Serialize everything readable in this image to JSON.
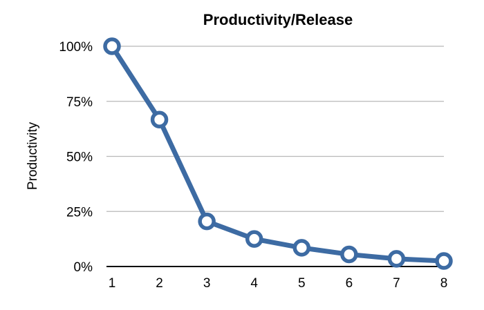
{
  "chart_data": {
    "type": "line",
    "title": "Productivity/Release",
    "xlabel": "",
    "ylabel": "Productivity",
    "x": [
      1,
      2,
      3,
      4,
      5,
      6,
      7,
      8
    ],
    "x_tick_labels": [
      "1",
      "2",
      "3",
      "4",
      "5",
      "6",
      "7",
      "8"
    ],
    "y_ticks": [
      0,
      25,
      50,
      75,
      100
    ],
    "y_tick_labels": [
      "0%",
      "25%",
      "50%",
      "75%",
      "100%"
    ],
    "ylim": [
      0,
      100
    ],
    "grid": true,
    "legend": "none",
    "series": [
      {
        "values": [
          100,
          66.7,
          20.5,
          12.5,
          8.5,
          5.5,
          3.5,
          2.5
        ]
      }
    ],
    "colors": {
      "line": "#3d6ba3",
      "marker_fill": "#ffffff",
      "grid": "#b8b8b8",
      "axis": "#000000"
    }
  }
}
